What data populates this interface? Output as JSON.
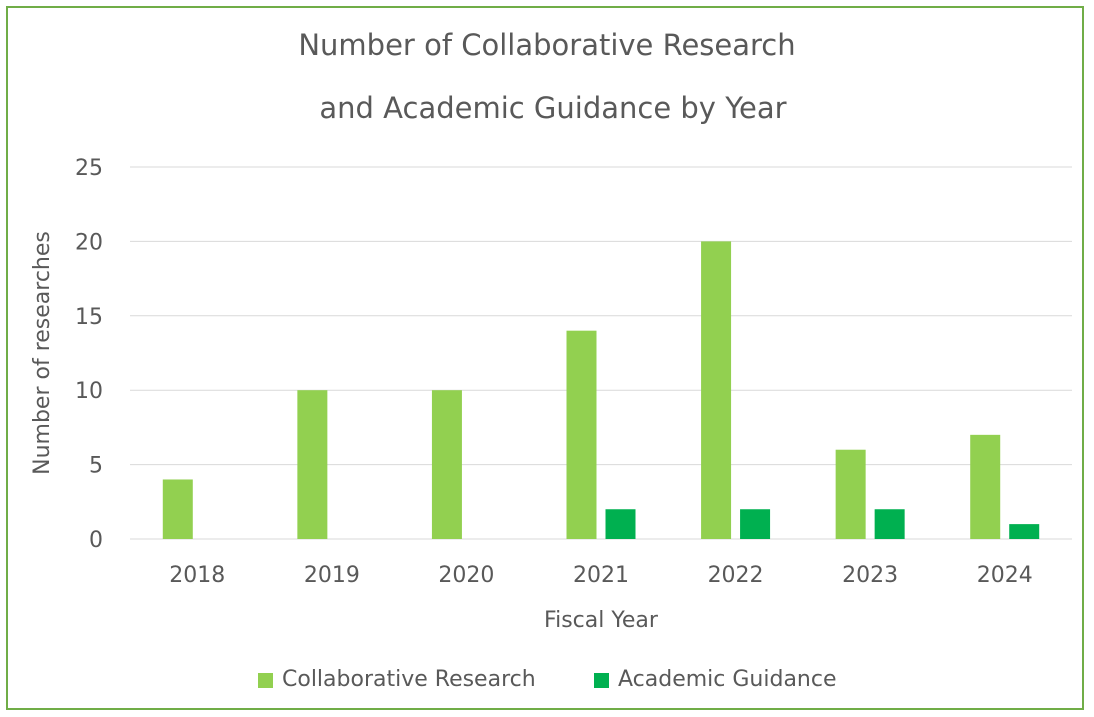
{
  "chart_data": {
    "type": "bar",
    "title_lines": [
      "Number of Collaborative Research",
      "and Academic Guidance by Year"
    ],
    "xlabel": "Fiscal Year",
    "ylabel": "Number of researches",
    "categories": [
      "2018",
      "2019",
      "2020",
      "2021",
      "2022",
      "2023",
      "2024"
    ],
    "series": [
      {
        "name": "Collaborative Research",
        "color": "#92d050",
        "values": [
          4,
          10,
          10,
          14,
          20,
          6,
          7
        ]
      },
      {
        "name": "Academic Guidance",
        "color": "#00b050",
        "values": [
          0,
          0,
          0,
          2,
          2,
          2,
          1
        ]
      }
    ],
    "ylim": [
      0,
      25
    ],
    "yticks": [
      0,
      5,
      10,
      15,
      20,
      25
    ],
    "grid": true,
    "legend_position": "bottom",
    "border_color": "#70ad47"
  }
}
